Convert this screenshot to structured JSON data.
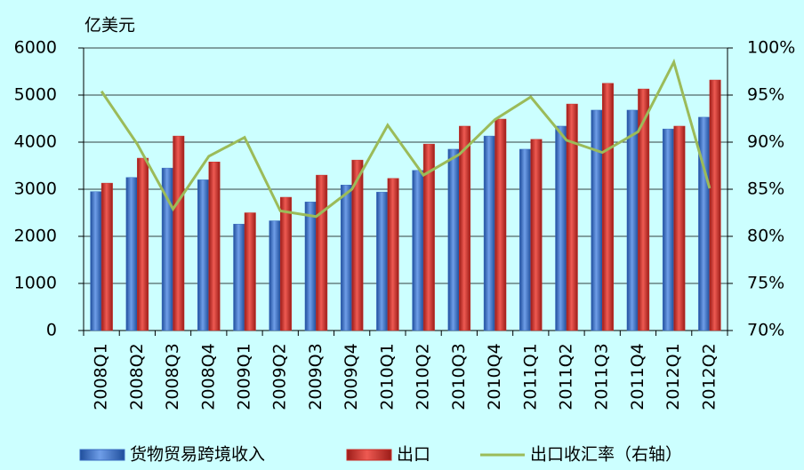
{
  "chart_data": {
    "type": "bar_line",
    "y_label": "亿美元",
    "categories": [
      "2008Q1",
      "2008Q2",
      "2008Q3",
      "2008Q4",
      "2009Q1",
      "2009Q2",
      "2009Q3",
      "2009Q4",
      "2010Q1",
      "2010Q2",
      "2010Q3",
      "2010Q4",
      "2011Q1",
      "2011Q2",
      "2011Q3",
      "2011Q4",
      "2012Q1",
      "2012Q2"
    ],
    "series": [
      {
        "name": "货物贸易跨境收入",
        "type": "bar",
        "color": "#3a6cc0",
        "values": [
          2950,
          3250,
          3450,
          3200,
          2260,
          2330,
          2730,
          3090,
          2940,
          3400,
          3850,
          4130,
          3850,
          4340,
          4680,
          4680,
          4280,
          4530
        ]
      },
      {
        "name": "出口",
        "type": "bar",
        "color": "#c8302b",
        "values": [
          3130,
          3660,
          4130,
          3580,
          2500,
          2830,
          3300,
          3620,
          3230,
          3960,
          4340,
          4490,
          4060,
          4810,
          5250,
          5130,
          4340,
          5320
        ]
      },
      {
        "name": "出口收汇率（右轴）",
        "type": "line",
        "axis": "y2",
        "color": "#9bbb59",
        "values": [
          95.4,
          89.8,
          82.9,
          88.5,
          90.5,
          82.7,
          82.1,
          85.0,
          91.8,
          86.5,
          88.7,
          92.4,
          94.8,
          90.2,
          88.9,
          91.1,
          98.5,
          85.1
        ]
      }
    ],
    "ylim": [
      0,
      6000
    ],
    "yticks": [
      0,
      1000,
      2000,
      3000,
      4000,
      5000,
      6000
    ],
    "y2lim": [
      70,
      100
    ],
    "y2ticks": [
      {
        "value": 70,
        "label": "70%"
      },
      {
        "value": 75,
        "label": "75%"
      },
      {
        "value": 80,
        "label": "80%"
      },
      {
        "value": 85,
        "label": "85%"
      },
      {
        "value": 90,
        "label": "90%"
      },
      {
        "value": 95,
        "label": "95%"
      },
      {
        "value": 100,
        "label": "100%"
      }
    ],
    "grid": true,
    "legend": "bottom"
  }
}
